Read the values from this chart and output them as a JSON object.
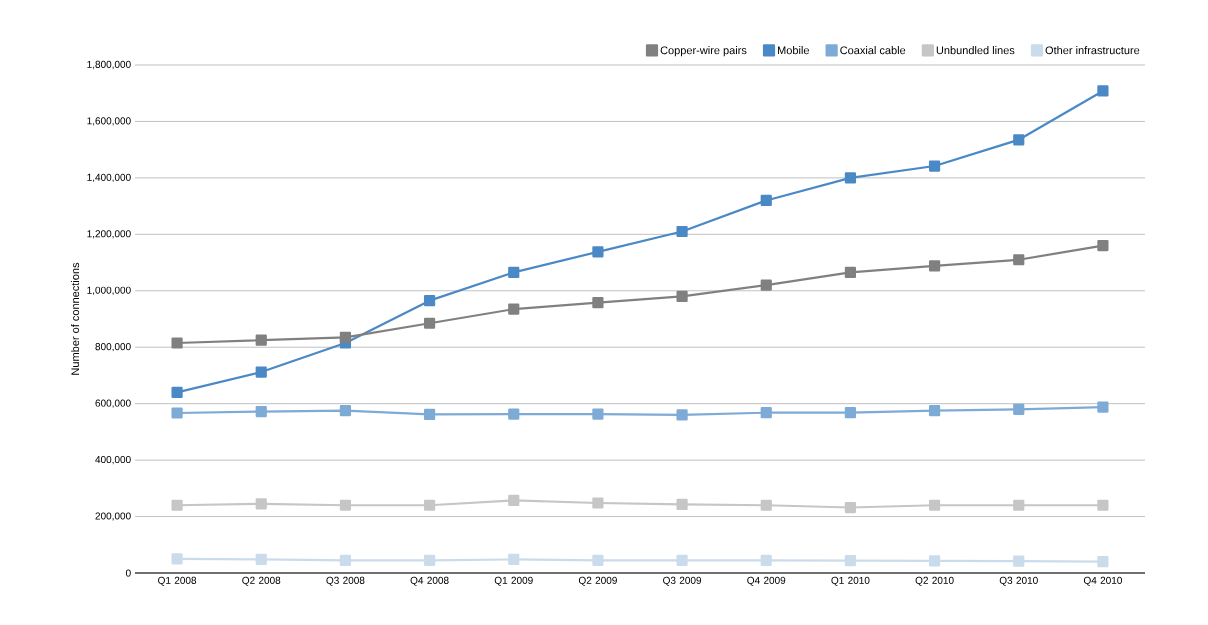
{
  "chart_data": {
    "type": "line",
    "ylabel": "Number of connections",
    "categories": [
      "Q1 2008",
      "Q2 2008",
      "Q3 2008",
      "Q4 2008",
      "Q1 2009",
      "Q2 2009",
      "Q3 2009",
      "Q4 2009",
      "Q1 2010",
      "Q2 2010",
      "Q3 2010",
      "Q4 2010"
    ],
    "series": [
      {
        "name": "Copper-wire pairs",
        "color": "#808080",
        "values": [
          815000,
          825000,
          835000,
          885000,
          935000,
          958000,
          980000,
          1020000,
          1065000,
          1088000,
          1110000,
          1160000
        ]
      },
      {
        "name": "Mobile",
        "color": "#4a89c5",
        "values": [
          640000,
          712000,
          815000,
          965000,
          1065000,
          1138000,
          1210000,
          1320000,
          1400000,
          1442000,
          1535000,
          1708000
        ]
      },
      {
        "name": "Coaxial cable",
        "color": "#7eaad6",
        "values": [
          567000,
          572000,
          575000,
          562000,
          563000,
          563000,
          560000,
          568000,
          568000,
          575000,
          580000,
          588000
        ]
      },
      {
        "name": "Unbundled lines",
        "color": "#c6c6c6",
        "values": [
          240000,
          245000,
          240000,
          240000,
          257000,
          248000,
          243000,
          240000,
          232000,
          240000,
          240000,
          240000
        ]
      },
      {
        "name": "Other infrastructure",
        "color": "#cadcec",
        "values": [
          50000,
          48000,
          45000,
          45000,
          48000,
          45000,
          45000,
          45000,
          44000,
          43000,
          42000,
          40000
        ]
      }
    ],
    "ylim": [
      0,
      1800000
    ],
    "yticks": [
      {
        "value": 0,
        "label": "0"
      },
      {
        "value": 200000,
        "label": "200,000"
      },
      {
        "value": 400000,
        "label": "400,000"
      },
      {
        "value": 600000,
        "label": "600,000"
      },
      {
        "value": 800000,
        "label": "800,000"
      },
      {
        "value": 1000000,
        "label": "1,000,000"
      },
      {
        "value": 1200000,
        "label": "1,200,000"
      },
      {
        "value": 1400000,
        "label": "1,400,000"
      },
      {
        "value": 1600000,
        "label": "1,600,000"
      },
      {
        "value": 1800000,
        "label": "1,800,000"
      }
    ],
    "grid": "y",
    "legend": "top right",
    "marker": "square",
    "line_style": "solid"
  }
}
